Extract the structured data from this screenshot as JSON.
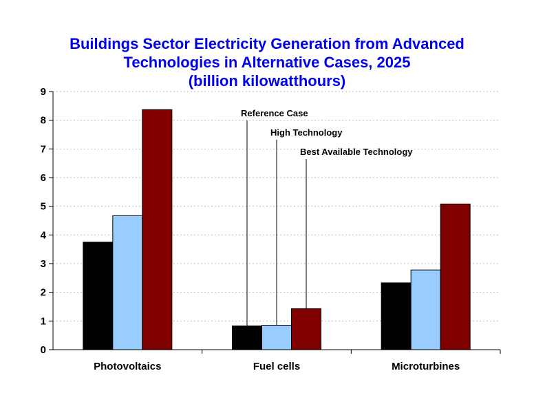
{
  "chart_data": {
    "type": "bar",
    "title_lines": [
      "Buildings Sector Electricity Generation from Advanced",
      "Technologies in Alternative Cases, 2025",
      "(billion kilowatthours)"
    ],
    "categories": [
      "Photovoltaics",
      "Fuel cells",
      "Microturbines"
    ],
    "series": [
      {
        "name": "Reference Case",
        "color": "#000000",
        "values": [
          3.75,
          0.83,
          2.33
        ]
      },
      {
        "name": "High Technology",
        "color": "#99ccff",
        "values": [
          4.67,
          0.85,
          2.78
        ]
      },
      {
        "name": "Best Available Technology",
        "color": "#800000",
        "values": [
          8.37,
          1.43,
          5.08
        ]
      }
    ],
    "ylim": [
      0,
      9
    ],
    "yticks": [
      "0",
      "1",
      "2",
      "3",
      "4",
      "5",
      "6",
      "7",
      "8",
      "9"
    ],
    "grid": true,
    "legend": "annotations above Fuel cells bars"
  }
}
